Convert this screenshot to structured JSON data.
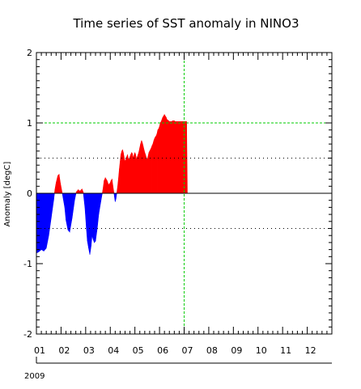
{
  "chart_data": {
    "type": "area",
    "title": "Time series of SST anomaly in NINO3",
    "ylabel": "Anomaly [degC]",
    "xlabel": "",
    "year_label": "2009",
    "ylim": [
      -2,
      2
    ],
    "y_ticks": [
      -2,
      -1,
      0,
      1,
      2
    ],
    "y_tick_labels": [
      "-2",
      "-1",
      "0",
      "1",
      "2"
    ],
    "x_range_months": [
      0,
      12
    ],
    "x_tick_labels": [
      "01",
      "02",
      "03",
      "04",
      "05",
      "06",
      "07",
      "08",
      "09",
      "10",
      "11",
      "12"
    ],
    "reference_lines": {
      "dotted_y": [
        -0.5,
        0.5
      ],
      "green_dashed_y": 1.0,
      "green_dashed_x_month": 6.0
    },
    "colors": {
      "positive": "#ff0000",
      "negative": "#0000ff",
      "reference": "#00cc00",
      "axis": "#000000"
    },
    "series": [
      {
        "x_month": [
          0.0,
          0.1,
          0.2,
          0.3,
          0.4,
          0.5,
          0.6,
          0.7,
          0.75,
          0.8,
          0.87,
          0.92,
          0.97,
          1.05,
          1.15,
          1.2,
          1.28,
          1.35,
          1.45,
          1.55,
          1.62,
          1.7,
          1.77,
          1.85,
          1.9,
          1.97,
          2.03,
          2.07,
          2.12,
          2.17,
          2.22,
          2.26,
          2.3,
          2.35,
          2.4,
          2.47,
          2.53,
          2.6,
          2.65,
          2.7,
          2.75,
          2.8,
          2.87,
          2.93,
          3.0,
          3.03,
          3.07,
          3.1,
          3.13,
          3.17,
          3.2,
          3.23,
          3.27,
          3.3,
          3.33,
          3.37,
          3.4,
          3.43,
          3.47,
          3.5,
          3.53,
          3.57,
          3.6,
          3.63,
          3.67,
          3.7,
          3.73,
          3.77,
          3.8,
          3.83,
          3.87,
          3.9,
          3.93,
          3.97,
          4.0,
          4.03,
          4.07,
          4.1,
          4.13,
          4.17,
          4.2,
          4.23,
          4.27,
          4.3,
          4.33,
          4.37,
          4.4,
          4.43,
          4.47,
          4.5,
          4.53,
          4.57,
          4.6,
          4.63,
          4.67,
          4.7,
          4.73,
          4.77,
          4.8,
          4.83,
          4.87,
          4.9,
          4.93,
          4.97,
          5.0,
          5.03,
          5.07,
          5.1,
          5.13,
          5.17,
          5.2,
          5.23,
          5.27,
          5.3,
          5.33,
          5.37,
          5.4,
          5.43,
          5.47,
          5.5,
          5.53,
          5.57,
          5.6,
          5.63,
          5.67,
          5.7,
          5.73,
          5.77,
          5.8,
          5.83,
          5.87,
          5.9,
          5.93,
          5.97,
          6.0,
          6.03,
          6.07,
          6.1,
          6.13
        ],
        "values": [
          -0.85,
          -0.83,
          -0.8,
          -0.82,
          -0.78,
          -0.6,
          -0.35,
          -0.1,
          0.05,
          0.15,
          0.25,
          0.27,
          0.15,
          0.0,
          -0.2,
          -0.38,
          -0.52,
          -0.55,
          -0.35,
          -0.1,
          0.02,
          0.05,
          0.03,
          0.06,
          0.02,
          -0.2,
          -0.5,
          -0.68,
          -0.78,
          -0.87,
          -0.75,
          -0.6,
          -0.65,
          -0.7,
          -0.68,
          -0.5,
          -0.3,
          -0.15,
          -0.05,
          0.05,
          0.18,
          0.22,
          0.18,
          0.12,
          0.15,
          0.18,
          0.2,
          0.12,
          0.05,
          -0.05,
          -0.12,
          -0.08,
          0.02,
          0.1,
          0.2,
          0.35,
          0.45,
          0.55,
          0.6,
          0.62,
          0.58,
          0.5,
          0.45,
          0.48,
          0.52,
          0.55,
          0.5,
          0.48,
          0.52,
          0.55,
          0.58,
          0.56,
          0.5,
          0.55,
          0.58,
          0.55,
          0.48,
          0.52,
          0.55,
          0.6,
          0.65,
          0.7,
          0.75,
          0.72,
          0.68,
          0.62,
          0.58,
          0.55,
          0.5,
          0.48,
          0.52,
          0.58,
          0.6,
          0.62,
          0.65,
          0.68,
          0.7,
          0.75,
          0.78,
          0.8,
          0.82,
          0.85,
          0.9,
          0.92,
          0.95,
          1.0,
          1.02,
          1.05,
          1.08,
          1.1,
          1.12,
          1.1,
          1.08,
          1.05,
          1.04,
          1.03,
          1.02,
          1.02,
          1.02,
          1.02,
          1.03,
          1.03,
          1.03,
          1.02,
          1.02,
          1.02,
          1.02,
          1.02,
          1.02,
          1.02,
          1.02,
          1.02,
          1.02,
          1.02,
          1.02,
          1.02,
          1.02,
          1.02,
          0.0
        ]
      }
    ],
    "grid": false,
    "legend": "none"
  }
}
